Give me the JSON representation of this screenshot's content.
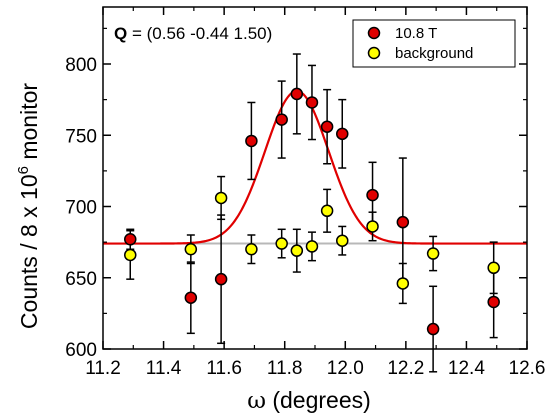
{
  "chart_data": {
    "type": "scatter",
    "annotation": {
      "q_symbol": "Q",
      "q_rest": " = (0.56 -0.44 1.50)"
    },
    "xlabel": {
      "symbol": "ω",
      "text": " (degrees)"
    },
    "ylabel": {
      "prefix": "Counts / 8 x 10",
      "exponent": "6",
      "suffix": " monitor"
    },
    "xlim": [
      11.2,
      12.6
    ],
    "ylim": [
      600,
      840
    ],
    "xticks": [
      "11.2",
      "11.4",
      "11.6",
      "11.8",
      "12.0",
      "12.2",
      "12.4",
      "12.6"
    ],
    "yticks": [
      "600",
      "650",
      "700",
      "750",
      "800"
    ],
    "legend_position": "top-right",
    "baseline": {
      "value": 674,
      "color": "#b8b8b8"
    },
    "fit": {
      "type": "gaussian",
      "baseline": 674,
      "amplitude": 107,
      "center": 11.84,
      "sigma": 0.105,
      "color": "#e00000"
    },
    "series": [
      {
        "name": "10.8 T",
        "color": "#e00000",
        "points": [
          {
            "x": 11.29,
            "y": 677,
            "err": 7
          },
          {
            "x": 11.49,
            "y": 636,
            "err": 25
          },
          {
            "x": 11.59,
            "y": 649,
            "err": 45
          },
          {
            "x": 11.69,
            "y": 746,
            "err": 27
          },
          {
            "x": 11.79,
            "y": 761,
            "err": 27
          },
          {
            "x": 11.84,
            "y": 779,
            "err": 28
          },
          {
            "x": 11.89,
            "y": 773,
            "err": 26
          },
          {
            "x": 11.94,
            "y": 756,
            "err": 26
          },
          {
            "x": 11.99,
            "y": 751,
            "err": 24
          },
          {
            "x": 12.09,
            "y": 708,
            "err": 23
          },
          {
            "x": 12.19,
            "y": 689,
            "err": 45
          },
          {
            "x": 12.29,
            "y": 614,
            "err": 30
          },
          {
            "x": 12.49,
            "y": 633,
            "err": 25
          }
        ]
      },
      {
        "name": "background",
        "color": "#ffff00",
        "points": [
          {
            "x": 11.29,
            "y": 666,
            "err": 17
          },
          {
            "x": 11.49,
            "y": 670,
            "err": 10
          },
          {
            "x": 11.59,
            "y": 706,
            "err": 15
          },
          {
            "x": 11.69,
            "y": 670,
            "err": 10
          },
          {
            "x": 11.79,
            "y": 674,
            "err": 10
          },
          {
            "x": 11.84,
            "y": 669,
            "err": 15
          },
          {
            "x": 11.89,
            "y": 672,
            "err": 10
          },
          {
            "x": 11.94,
            "y": 697,
            "err": 15
          },
          {
            "x": 11.99,
            "y": 676,
            "err": 10
          },
          {
            "x": 12.09,
            "y": 686,
            "err": 10
          },
          {
            "x": 12.19,
            "y": 646,
            "err": 14
          },
          {
            "x": 12.29,
            "y": 667,
            "err": 12
          },
          {
            "x": 12.49,
            "y": 657,
            "err": 18
          }
        ]
      }
    ]
  }
}
